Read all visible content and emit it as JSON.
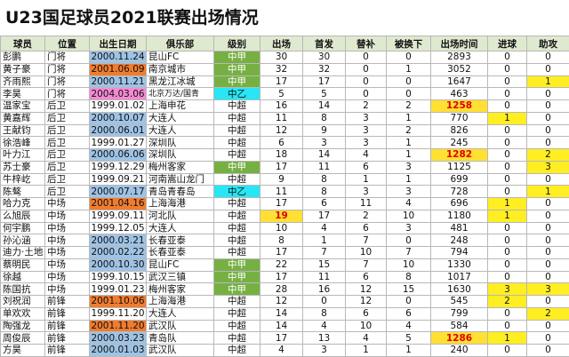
{
  "title": "U23国足球员2021联赛出场情况",
  "table": {
    "header": [
      "球员",
      "位置",
      "出生日期",
      "俱乐部",
      "级别",
      "出场",
      "首发",
      "替补",
      "被换下",
      "出场时间",
      "进球",
      "助攻"
    ],
    "rows": [
      [
        "彭鹏",
        "门将",
        "2000.11.24",
        "昆山FC",
        "中甲",
        30,
        30,
        0,
        0,
        2893,
        0,
        0
      ],
      [
        "黄子豪",
        "门将",
        "2001.06.09",
        "南京城市",
        "中甲",
        32,
        32,
        0,
        1,
        3052,
        0,
        0
      ],
      [
        "齐雨熙",
        "门将",
        "2000.11.21",
        "黑龙江冰城",
        "中甲",
        17,
        17,
        0,
        0,
        1647,
        0,
        1
      ],
      [
        "李昊",
        "门将",
        "2004.03.06",
        "北京万达/国青",
        "中乙",
        5,
        5,
        0,
        0,
        463,
        0,
        0
      ],
      [
        "温家宝",
        "后卫",
        "1999.01.02",
        "上海申花",
        "中超",
        16,
        14,
        2,
        2,
        1258,
        0,
        0
      ],
      [
        "黄嘉辉",
        "后卫",
        "2000.10.07",
        "大连人",
        "中超",
        11,
        8,
        3,
        1,
        770,
        1,
        0
      ],
      [
        "王献钧",
        "后卫",
        "2000.06.01",
        "大连人",
        "中超",
        12,
        9,
        3,
        2,
        826,
        0,
        0
      ],
      [
        "徐浩峰",
        "后卫",
        "1999.01.27",
        "深圳队",
        "中超",
        6,
        3,
        3,
        1,
        245,
        0,
        0
      ],
      [
        "叶力江",
        "后卫",
        "2000.06.06",
        "深圳队",
        "中超",
        18,
        14,
        4,
        1,
        1282,
        0,
        2
      ],
      [
        "苏士豪",
        "后卫",
        "1999.12.29",
        "梅州客家",
        "中甲",
        17,
        11,
        6,
        3,
        1125,
        0,
        3
      ],
      [
        "牛梓屹",
        "后卫",
        "1999.09.21",
        "河南嵩山龙门",
        "中超",
        9,
        8,
        1,
        1,
        699,
        0,
        0
      ],
      [
        "陈骜",
        "后卫",
        "2000.07.17",
        "青岛青春岛",
        "中乙",
        11,
        8,
        3,
        3,
        728,
        0,
        1
      ],
      [
        "哈力克",
        "中场",
        "2001.04.16",
        "上海海港",
        "中超",
        17,
        6,
        11,
        4,
        696,
        1,
        0
      ],
      [
        "么旭辰",
        "中场",
        "1999.09.11",
        "河北队",
        "中超",
        19,
        17,
        2,
        10,
        1180,
        1,
        0
      ],
      [
        "何宇鹏",
        "中场",
        "1999.12.05",
        "大连人",
        "中超",
        10,
        4,
        6,
        3,
        481,
        0,
        0
      ],
      [
        "孙沁涵",
        "中场",
        "2000.03.21",
        "长春亚泰",
        "中超",
        8,
        1,
        7,
        0,
        248,
        0,
        0
      ],
      [
        "迪力·土地",
        "中场",
        "2000.02.22",
        "长春亚泰",
        "中超",
        17,
        7,
        10,
        7,
        794,
        0,
        0
      ],
      [
        "蔡明民",
        "中场",
        "2000.10.30",
        "昆山FC",
        "中甲",
        22,
        15,
        7,
        10,
        1330,
        0,
        0
      ],
      [
        "徐越",
        "中场",
        "1999.10.15",
        "武汉三镇",
        "中甲",
        17,
        11,
        6,
        8,
        1017,
        0,
        0
      ],
      [
        "陈国抗",
        "中场",
        "1999.01.23",
        "梅州客家",
        "中甲",
        28,
        16,
        12,
        15,
        1630,
        3,
        3
      ],
      [
        "刘祝润",
        "前锋",
        "2001.10.06",
        "上海海港",
        "中超",
        12,
        0,
        12,
        0,
        545,
        2,
        0
      ],
      [
        "单欢欢",
        "前锋",
        "1999.11.20",
        "大连人",
        "中超",
        14,
        8,
        6,
        6,
        799,
        0,
        2
      ],
      [
        "陶强龙",
        "前锋",
        "2001.11.20",
        "武汉队",
        "中超",
        14,
        4,
        10,
        4,
        584,
        0,
        0
      ],
      [
        "周俊辰",
        "前锋",
        "2000.03.23",
        "青岛队",
        "中超",
        17,
        13,
        4,
        5,
        1286,
        1,
        0
      ],
      [
        "方昊",
        "前锋",
        "2000.01.03",
        "武汉队",
        "中超",
        4,
        3,
        1,
        1,
        240,
        0,
        0
      ]
    ]
  }
}
